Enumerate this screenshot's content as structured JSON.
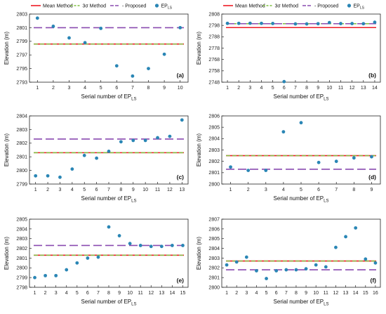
{
  "colors": {
    "mean": "#ee1c25",
    "sigma": "#7fbf3f",
    "proposed": "#8a4bb0",
    "points": "#2a86b5"
  },
  "chart_data": [
    {
      "type": "scatter",
      "label": "(a)",
      "legend": [
        {
          "key": "mean",
          "text": "Mean Method",
          "style": "solid"
        },
        {
          "key": "sigma",
          "text": "3σ Method",
          "style": "dashed"
        },
        {
          "key": "proposed",
          "text": "Proposed",
          "style": "dashed",
          "prefix": "- "
        },
        {
          "key": "points",
          "text": "EP",
          "sub": "LS",
          "style": "dot"
        }
      ],
      "ylabel": "Elevation (m)",
      "xlabel": "Serial number of EP",
      "xlabel_sub": "LS",
      "ylim": [
        2793,
        2803
      ],
      "yticks": [
        2793,
        2795,
        2797,
        2799,
        2801,
        2803
      ],
      "xlim": [
        0.5,
        10.5
      ],
      "xticks": [
        1,
        2,
        3,
        4,
        5,
        6,
        7,
        8,
        9,
        10
      ],
      "x": [
        1,
        2,
        3,
        4,
        5,
        6,
        7,
        8,
        9,
        10
      ],
      "y": [
        2802.4,
        2801.2,
        2799.5,
        2798.8,
        2800.9,
        2795.4,
        2793.9,
        2795.0,
        2797.1,
        2801.0
      ],
      "mean_line": 2798.6,
      "sigma_line": 2798.6,
      "proposed_line": 2801.0
    },
    {
      "type": "scatter",
      "label": "(b)",
      "legend": [
        {
          "key": "mean",
          "text": "Mean Method",
          "style": "solid"
        },
        {
          "key": "sigma",
          "text": "3σ Method",
          "style": "dashed"
        },
        {
          "key": "proposed",
          "text": "Proposed",
          "style": "dashed",
          "prefix": "- "
        },
        {
          "key": "points",
          "text": "EP",
          "sub": "LS",
          "style": "dot"
        }
      ],
      "ylabel": "Elevation (m)",
      "xlabel": "Serial number of EP",
      "xlabel_sub": "LS",
      "ylim": [
        2748,
        2808
      ],
      "yticks": [
        2748,
        2758,
        2768,
        2778,
        2788,
        2798,
        2808
      ],
      "xlim": [
        0.5,
        14.5
      ],
      "xticks": [
        1,
        2,
        3,
        4,
        5,
        6,
        7,
        8,
        9,
        10,
        11,
        12,
        13,
        14
      ],
      "x": [
        1,
        2,
        3,
        4,
        5,
        6,
        7,
        8,
        9,
        10,
        11,
        12,
        13,
        14
      ],
      "y": [
        2799.8,
        2799.8,
        2799.9,
        2799.8,
        2799.7,
        2748.5,
        2799.3,
        2799.3,
        2799.5,
        2800.5,
        2799.6,
        2799.6,
        2799.5,
        2800.8
      ],
      "mean_line": 2796.1,
      "sigma_line": 2799.5,
      "proposed_line": 2799.5
    },
    {
      "type": "scatter",
      "label": "(c)",
      "ylabel": "Elevation (m)",
      "xlabel": "Serial number of EP",
      "xlabel_sub": "LS",
      "ylim": [
        2799,
        2804
      ],
      "yticks": [
        2799,
        2800,
        2801,
        2802,
        2803,
        2804
      ],
      "xlim": [
        0.5,
        13.5
      ],
      "xticks": [
        1,
        2,
        3,
        4,
        5,
        6,
        7,
        8,
        9,
        10,
        11,
        12,
        13
      ],
      "x": [
        1,
        2,
        3,
        4,
        5,
        6,
        7,
        8,
        9,
        10,
        11,
        12,
        13
      ],
      "y": [
        2799.6,
        2799.6,
        2799.5,
        2800.1,
        2801.1,
        2800.9,
        2801.4,
        2802.1,
        2802.2,
        2802.2,
        2802.4,
        2802.5,
        2803.7
      ],
      "mean_line": 2801.3,
      "sigma_line": 2801.3,
      "proposed_line": 2802.3
    },
    {
      "type": "scatter",
      "label": "(d)",
      "ylabel": "Elevation (m)",
      "xlabel": "Serial number of EP",
      "xlabel_sub": "LS",
      "ylim": [
        2800,
        2806
      ],
      "yticks": [
        2800,
        2801,
        2802,
        2803,
        2804,
        2805,
        2806
      ],
      "xlim": [
        0.5,
        9.5
      ],
      "xticks": [
        1,
        2,
        3,
        4,
        5,
        6,
        7,
        8,
        9
      ],
      "x": [
        1,
        2,
        3,
        4,
        5,
        6,
        7,
        8,
        9
      ],
      "y": [
        2801.5,
        2801.2,
        2801.2,
        2804.6,
        2805.4,
        2801.9,
        2802.0,
        2802.3,
        2802.4
      ],
      "mean_line": 2802.5,
      "sigma_line": 2802.5,
      "proposed_line": 2801.3
    },
    {
      "type": "scatter",
      "label": "(e)",
      "ylabel": "Elevation (m)",
      "xlabel": "Serial number of EP",
      "xlabel_sub": "LS",
      "ylim": [
        2798,
        2805
      ],
      "yticks": [
        2798,
        2799,
        2800,
        2801,
        2802,
        2803,
        2804,
        2805
      ],
      "xlim": [
        0.5,
        15.5
      ],
      "xticks": [
        1,
        2,
        3,
        4,
        5,
        6,
        7,
        8,
        9,
        10,
        11,
        12,
        13,
        14,
        15
      ],
      "x": [
        1,
        2,
        3,
        4,
        5,
        6,
        7,
        8,
        9,
        10,
        11,
        12,
        13,
        14,
        15
      ],
      "y": [
        2799.0,
        2799.2,
        2799.2,
        2799.8,
        2800.5,
        2801.0,
        2801.1,
        2804.2,
        2803.3,
        2802.5,
        2802.3,
        2802.2,
        2802.2,
        2802.3,
        2802.3
      ],
      "mean_line": 2801.3,
      "sigma_line": 2801.3,
      "proposed_line": 2802.3
    },
    {
      "type": "scatter",
      "label": "(f)",
      "ylabel": "Elevation (m)",
      "xlabel": "Serial number of EP",
      "xlabel_sub": "LS",
      "ylim": [
        2800,
        2807
      ],
      "yticks": [
        2800,
        2801,
        2802,
        2803,
        2804,
        2805,
        2806,
        2807
      ],
      "xlim": [
        0.5,
        16.5
      ],
      "xticks": [
        1,
        2,
        3,
        4,
        5,
        6,
        7,
        8,
        9,
        10,
        11,
        12,
        13,
        14,
        15,
        16
      ],
      "x": [
        1,
        2,
        3,
        4,
        5,
        6,
        7,
        8,
        9,
        10,
        11,
        12,
        13,
        14,
        15,
        16
      ],
      "y": [
        2802.3,
        2802.6,
        2803.1,
        2801.7,
        2800.9,
        2801.7,
        2801.8,
        2801.8,
        2801.9,
        2802.3,
        2802.1,
        2804.1,
        2805.2,
        2806.1,
        2802.9,
        2802.5
      ],
      "mean_line": 2802.7,
      "sigma_line": 2802.7,
      "proposed_line": 2801.8
    }
  ]
}
